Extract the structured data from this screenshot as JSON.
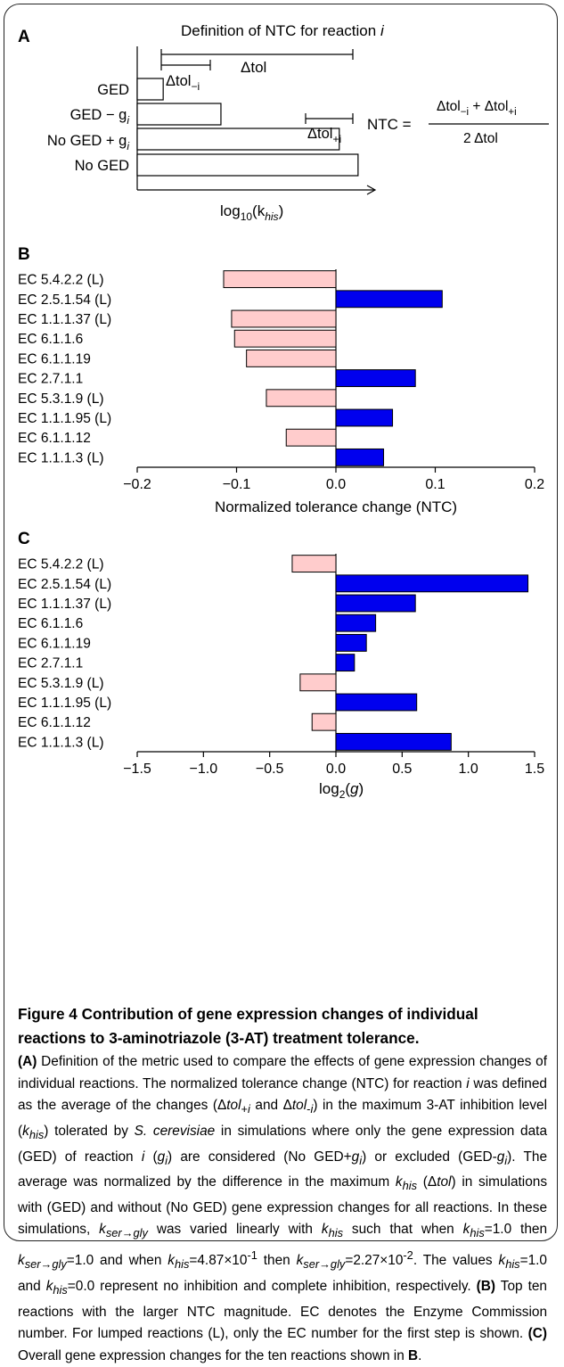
{
  "panelA": {
    "label": "A",
    "title": "Definition of NTC for reaction",
    "title_var": "i",
    "row_labels": [
      "GED",
      "GED − g",
      "No GED + g",
      "No GED"
    ],
    "row_subscript": "i",
    "dtol_label": "Δtol",
    "dtol_minus_label": "Δtol",
    "dtol_minus_sub": "−i",
    "dtol_plus_label": "Δtol",
    "dtol_plus_sub": "+i",
    "axis_label_prefix": "log",
    "axis_label_sub": "10",
    "axis_label_open": "(k",
    "axis_label_var_sub": "his",
    "axis_label_close": ")",
    "ntc_lhs": "NTC =",
    "ntc_num_a": "Δtol",
    "ntc_num_a_sub": "−i",
    "ntc_num_plus": " + ",
    "ntc_num_b": "Δtol",
    "ntc_num_b_sub": "+i",
    "ntc_den": "2 Δtol",
    "bars": [
      0.18,
      0.58,
      1.4,
      1.53
    ]
  },
  "chart_data": [
    {
      "type": "bar",
      "panel": "B",
      "orientation": "horizontal",
      "categories": [
        "EC 5.4.2.2 (L)",
        "EC 2.5.1.54 (L)",
        "EC 1.1.1.37 (L)",
        "EC 6.1.1.6",
        "EC 6.1.1.19",
        "EC 2.7.1.1",
        "EC 5.3.1.9 (L)",
        "EC 1.1.1.95 (L)",
        "EC 6.1.1.12",
        "EC 1.1.1.3 (L)"
      ],
      "values": [
        -0.113,
        0.107,
        -0.105,
        -0.102,
        -0.09,
        0.08,
        -0.07,
        0.057,
        -0.05,
        0.048
      ],
      "xlabel": "Normalized tolerance change (NTC)",
      "xlim": [
        -0.2,
        0.2
      ],
      "ticks": [
        -0.2,
        -0.1,
        0.0,
        0.1,
        0.2
      ],
      "tick_labels": [
        "−0.2",
        "−0.1",
        "0.0",
        "0.1",
        "0.2"
      ],
      "colors": {
        "positive": "#0000ee",
        "negative": "#ffcccc"
      }
    },
    {
      "type": "bar",
      "panel": "C",
      "orientation": "horizontal",
      "categories": [
        "EC 5.4.2.2 (L)",
        "EC 2.5.1.54 (L)",
        "EC 1.1.1.37 (L)",
        "EC 6.1.1.6",
        "EC 6.1.1.19",
        "EC 2.7.1.1",
        "EC 5.3.1.9 (L)",
        "EC 1.1.1.95 (L)",
        "EC 6.1.1.12",
        "EC 1.1.1.3 (L)"
      ],
      "values": [
        -0.33,
        1.45,
        0.6,
        0.3,
        0.23,
        0.14,
        -0.27,
        0.61,
        -0.18,
        0.87
      ],
      "xlabel_prefix": "log",
      "xlabel_sub": "2",
      "xlabel_open": "(",
      "xlabel_var": "g",
      "xlabel_close": ")",
      "xlim": [
        -1.5,
        1.5
      ],
      "ticks": [
        -1.5,
        -1.0,
        -0.5,
        0.0,
        0.5,
        1.0,
        1.5
      ],
      "tick_labels": [
        "−1.5",
        "−1.0",
        "−0.5",
        "0.0",
        "0.5",
        "1.0",
        "1.5"
      ],
      "colors": {
        "positive": "#0000ee",
        "negative": "#ffcccc"
      }
    }
  ],
  "panel_labels": {
    "b": "B",
    "c": "C"
  },
  "caption": {
    "title": "Figure 4 Contribution of gene expression changes of individual reactions to 3-aminotriazole (3-AT) treatment tolerance.",
    "html": "<b>(A)</b> Definition of the metric used to compare the effects of gene expression changes of individual reactions. The normalized tolerance change (NTC) for reaction <i>i</i> was defined as the average of the changes (Δ<i>tol</i><sub>+<i>i</i></sub> and Δ<i>tol</i><sub>-<i>i</i></sub>) in the maximum 3-AT inhibition level (<i>k</i><sub><i>his</i></sub>) tolerated by <i>S. cerevisiae</i> in simulations where only the gene expression data (GED) of reaction <i>i</i> (<i>g</i><sub><i>i</i></sub>) are considered (No GED+<i>g</i><sub><i>i</i></sub>) or excluded (GED-<i>g</i><sub><i>i</i></sub>). The average was normalized by the difference in the maximum <i>k</i><sub><i>his</i></sub> (Δ<i>tol</i>) in simulations with (GED) and without (No GED) gene expression changes for all reactions. In these simulations, <i>k</i><sub><i>ser→gly</i></sub> was varied linearly with <i>k</i><sub><i>his</i></sub> such that when <i>k</i><sub><i>his</i></sub>=1.0 then <i>k</i><sub><i>ser→gly</i></sub>=1.0 and when <i>k</i><sub><i>his</i></sub>=4.87×10<sup>-1</sup> then <i>k</i><sub><i>ser→gly</i></sub>=2.27×10<sup>-2</sup>. The values <i>k</i><sub><i>his</i></sub>=1.0 and <i>k</i><sub><i>his</i></sub>=0.0 represent no inhibition and complete inhibition, respectively. <b>(B)</b> Top ten reactions with the larger NTC magnitude. EC denotes the Enzyme Commission number. For lumped reactions (L), only the EC number for the first step is shown. <b>(C)</b> Overall gene expression changes for the ten reactions shown in <b>B</b>."
  }
}
